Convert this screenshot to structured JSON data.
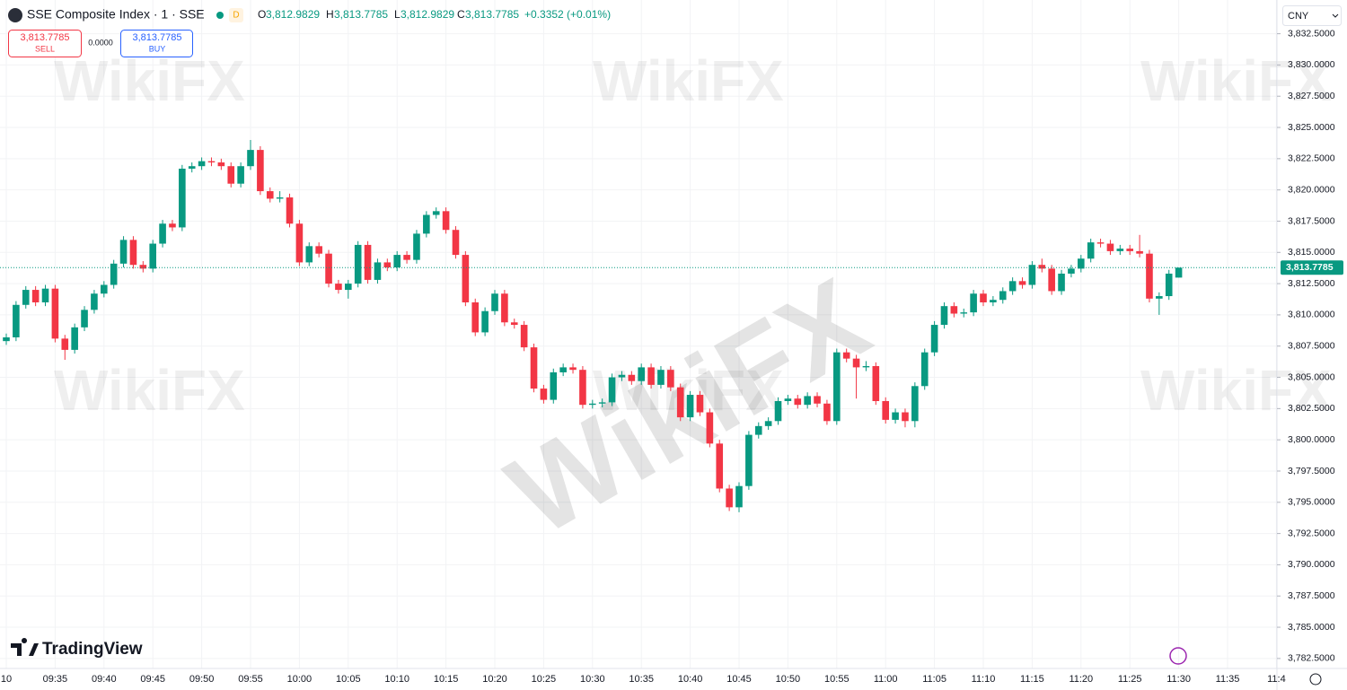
{
  "header": {
    "symbol": "SSE Composite Index · 1 · SSE",
    "badge": "D",
    "o_key": "O",
    "o_val": "3,812.9829",
    "h_key": "H",
    "h_val": "3,813.7785",
    "l_key": "L",
    "l_val": "3,812.9829",
    "c_key": "C",
    "c_val": "3,813.7785",
    "change": "+0.3352 (+0.01%)",
    "sell_price": "3,813.7785",
    "sell": "SELL",
    "spread": "0.0000",
    "buy_price": "3,813.7785",
    "buy": "BUY",
    "currency": "CNY",
    "last_price": "3,813.7785",
    "logo": "TradingView",
    "watermark": "WikiFX"
  },
  "chart_data": {
    "type": "candlestick",
    "categories": [
      "10",
      null,
      null,
      null,
      null,
      "09:35",
      null,
      null,
      null,
      null,
      "09:40",
      null,
      null,
      null,
      null,
      "09:45",
      null,
      null,
      null,
      null,
      "09:50",
      null,
      null,
      null,
      null,
      "09:55",
      null,
      null,
      null,
      null,
      "10:00",
      null,
      null,
      null,
      null,
      "10:05",
      null,
      null,
      null,
      null,
      "10:10",
      null,
      null,
      null,
      null,
      "10:15",
      null,
      null,
      null,
      null,
      "10:20",
      null,
      null,
      null,
      null,
      "10:25",
      null,
      null,
      null,
      null,
      "10:30",
      null,
      null,
      null,
      null,
      "10:35",
      null,
      null,
      null,
      null,
      "10:40",
      null,
      null,
      null,
      null,
      "10:45",
      null,
      null,
      null,
      null,
      "10:50",
      null,
      null,
      null,
      null,
      "10:55",
      null,
      null,
      null,
      null,
      "11:00",
      null,
      null,
      null,
      null,
      "11:05",
      null,
      null,
      null,
      null,
      "11:10",
      null,
      null,
      null,
      null,
      "11:15",
      null,
      null,
      null,
      null,
      "11:20",
      null,
      null,
      null,
      null,
      "11:25",
      null,
      null,
      null,
      null,
      "11:30",
      null,
      null,
      null,
      null,
      "11:35",
      null,
      null,
      null,
      null,
      "11:4"
    ],
    "series": [
      {
        "up_color": "#089981",
        "down_color": "#f23645",
        "open": [
          3807.9,
          3808.2,
          3810.8,
          3812.0,
          3811.0,
          3812.1,
          3808.1,
          3807.2,
          3809.0,
          3810.4,
          3811.7,
          3812.4,
          3814.1,
          3816.0,
          3814.0,
          3813.7,
          3815.7,
          3817.3,
          3817.0,
          3821.7,
          3821.9,
          3822.3,
          3822.2,
          3821.9,
          3820.5,
          3821.9,
          3823.2,
          3819.9,
          3819.3,
          3819.4,
          3817.3,
          3814.2,
          3815.5,
          3814.9,
          3812.5,
          3812.0,
          3812.5,
          3815.6,
          3812.8,
          3814.2,
          3813.8,
          3814.8,
          3814.4,
          3816.5,
          3818.0,
          3818.3,
          3816.8,
          3814.8,
          3811.0,
          3808.6,
          3810.3,
          3811.7,
          3809.4,
          3809.2,
          3807.4,
          3804.1,
          3803.2,
          3805.4,
          3805.8,
          3805.6,
          3802.8,
          3802.9,
          3803.0,
          3805.0,
          3805.2,
          3804.7,
          3805.8,
          3804.4,
          3805.6,
          3804.2,
          3801.8,
          3803.6,
          3802.2,
          3799.7,
          3796.1,
          3794.6,
          3796.3,
          3800.4,
          3801.1,
          3801.5,
          3803.1,
          3803.3,
          3802.8,
          3803.5,
          3802.9,
          3801.5,
          3807.0,
          3806.5,
          3805.8,
          3805.9,
          3803.1,
          3801.6,
          3802.2,
          3801.5,
          3804.3,
          3807.0,
          3809.2,
          3810.7,
          3810.1,
          3810.2,
          3811.7,
          3811.0,
          3811.2,
          3811.9,
          3812.7,
          3812.4,
          3814.0,
          3813.7,
          3811.9,
          3813.3,
          3813.7,
          3814.5,
          3815.8,
          3815.7,
          3815.1,
          3815.3,
          3815.1,
          3814.9,
          3811.3,
          3811.5,
          3812.9829,
          null,
          null,
          null,
          null,
          null,
          null,
          null,
          null,
          null,
          null
        ],
        "high": [
          3808.5,
          3811.1,
          3812.3,
          3812.3,
          3812.4,
          3812.4,
          3808.4,
          3809.3,
          3810.7,
          3812.0,
          3812.7,
          3814.4,
          3816.3,
          3816.3,
          3814.3,
          3816.0,
          3817.6,
          3817.6,
          3822.0,
          3822.2,
          3822.6,
          3822.6,
          3822.5,
          3822.2,
          3822.2,
          3824.0,
          3823.5,
          3820.2,
          3819.9,
          3819.7,
          3817.6,
          3815.8,
          3815.8,
          3815.2,
          3812.8,
          3812.8,
          3815.9,
          3815.9,
          3814.5,
          3814.5,
          3815.1,
          3815.1,
          3816.8,
          3818.3,
          3818.6,
          3818.6,
          3817.1,
          3815.1,
          3811.3,
          3810.6,
          3812.0,
          3812.0,
          3809.7,
          3809.5,
          3807.7,
          3804.4,
          3805.7,
          3806.1,
          3806.1,
          3805.9,
          3803.2,
          3803.3,
          3805.3,
          3805.5,
          3805.5,
          3806.1,
          3806.1,
          3805.9,
          3805.9,
          3804.5,
          3803.9,
          3803.9,
          3802.5,
          3800.0,
          3796.4,
          3796.6,
          3800.7,
          3801.4,
          3801.8,
          3803.4,
          3803.6,
          3803.6,
          3803.8,
          3803.8,
          3803.2,
          3807.3,
          3807.3,
          3806.8,
          3806.3,
          3806.2,
          3803.4,
          3802.5,
          3802.5,
          3804.6,
          3807.3,
          3809.5,
          3811.0,
          3811.0,
          3810.5,
          3812.0,
          3812.0,
          3811.5,
          3812.2,
          3813.0,
          3813.0,
          3814.3,
          3814.5,
          3814.0,
          3813.6,
          3814.0,
          3814.8,
          3816.1,
          3816.1,
          3816.0,
          3815.6,
          3815.6,
          3816.4,
          3815.2,
          3811.8,
          3813.6,
          3813.7785,
          null,
          null,
          null,
          null,
          null,
          null,
          null,
          null,
          null,
          null
        ],
        "low": [
          3807.6,
          3807.9,
          3810.5,
          3810.7,
          3810.7,
          3807.8,
          3806.4,
          3806.9,
          3808.7,
          3810.1,
          3811.4,
          3812.1,
          3813.8,
          3813.7,
          3813.4,
          3813.4,
          3815.4,
          3816.7,
          3816.7,
          3821.4,
          3821.6,
          3821.9,
          3821.6,
          3820.2,
          3820.2,
          3821.6,
          3819.6,
          3819.0,
          3819.0,
          3817.0,
          3813.9,
          3813.9,
          3814.6,
          3812.2,
          3811.7,
          3811.3,
          3812.2,
          3812.5,
          3812.5,
          3813.5,
          3813.5,
          3814.1,
          3814.1,
          3816.2,
          3817.7,
          3816.5,
          3814.5,
          3810.7,
          3808.3,
          3808.3,
          3810.0,
          3809.1,
          3808.9,
          3807.1,
          3803.8,
          3802.9,
          3802.9,
          3805.1,
          3805.3,
          3802.5,
          3802.5,
          3802.6,
          3802.7,
          3804.7,
          3804.4,
          3804.4,
          3804.1,
          3804.1,
          3803.9,
          3801.5,
          3801.5,
          3801.9,
          3799.4,
          3795.8,
          3794.3,
          3794.2,
          3796.0,
          3800.1,
          3800.8,
          3801.2,
          3802.8,
          3802.5,
          3802.5,
          3802.6,
          3801.2,
          3801.2,
          3806.2,
          3803.3,
          3805.5,
          3802.8,
          3801.3,
          3801.3,
          3801.0,
          3801.0,
          3804.0,
          3806.7,
          3808.9,
          3809.8,
          3809.8,
          3809.9,
          3810.7,
          3810.7,
          3810.9,
          3811.6,
          3812.1,
          3812.1,
          3813.4,
          3811.6,
          3811.6,
          3813.0,
          3813.4,
          3814.2,
          3815.4,
          3814.8,
          3814.8,
          3814.8,
          3814.6,
          3811.0,
          3810.0,
          3811.2,
          3812.9829,
          null,
          null,
          null,
          null,
          null,
          null,
          null,
          null,
          null,
          null
        ],
        "close": [
          3808.2,
          3810.8,
          3812.0,
          3811.0,
          3812.1,
          3808.1,
          3807.2,
          3809.0,
          3810.4,
          3811.7,
          3812.4,
          3814.1,
          3816.0,
          3814.0,
          3813.7,
          3815.7,
          3817.3,
          3817.0,
          3821.7,
          3821.9,
          3822.3,
          3822.2,
          3821.9,
          3820.5,
          3821.9,
          3823.2,
          3819.9,
          3819.3,
          3819.4,
          3817.3,
          3814.2,
          3815.5,
          3814.9,
          3812.5,
          3812.0,
          3812.5,
          3815.6,
          3812.8,
          3814.2,
          3813.8,
          3814.8,
          3814.4,
          3816.5,
          3818.0,
          3818.3,
          3816.8,
          3814.8,
          3811.0,
          3808.6,
          3810.3,
          3811.7,
          3809.4,
          3809.2,
          3807.4,
          3804.1,
          3803.2,
          3805.4,
          3805.8,
          3805.6,
          3802.8,
          3802.9,
          3803.0,
          3805.0,
          3805.2,
          3804.7,
          3805.8,
          3804.4,
          3805.6,
          3804.2,
          3801.8,
          3803.6,
          3802.2,
          3799.7,
          3796.1,
          3794.6,
          3796.3,
          3800.4,
          3801.1,
          3801.5,
          3803.1,
          3803.3,
          3802.8,
          3803.5,
          3802.9,
          3801.5,
          3807.0,
          3806.5,
          3805.8,
          3805.9,
          3803.1,
          3801.6,
          3802.2,
          3801.5,
          3804.3,
          3807.0,
          3809.2,
          3810.7,
          3810.1,
          3810.2,
          3811.7,
          3811.0,
          3811.2,
          3811.9,
          3812.7,
          3812.4,
          3814.0,
          3813.7,
          3811.9,
          3813.3,
          3813.7,
          3814.5,
          3815.8,
          3815.7,
          3815.1,
          3815.3,
          3815.1,
          3814.9,
          3811.3,
          3811.5,
          3813.3,
          3813.7785,
          null,
          null,
          null,
          null,
          null,
          null,
          null,
          null,
          null,
          null
        ]
      }
    ],
    "ylim": [
      3781.7,
      3835.2
    ],
    "yticks": [
      {
        "value": 3782.5,
        "label": "3,782.5000"
      },
      {
        "value": 3785,
        "label": "3,785.0000"
      },
      {
        "value": 3787.5,
        "label": "3,787.5000"
      },
      {
        "value": 3790,
        "label": "3,790.0000"
      },
      {
        "value": 3792.5,
        "label": "3,792.5000"
      },
      {
        "value": 3795,
        "label": "3,795.0000"
      },
      {
        "value": 3797.5,
        "label": "3,797.5000"
      },
      {
        "value": 3800,
        "label": "3,800.0000"
      },
      {
        "value": 3802.5,
        "label": "3,802.5000"
      },
      {
        "value": 3805,
        "label": "3,805.0000"
      },
      {
        "value": 3807.5,
        "label": "3,807.5000"
      },
      {
        "value": 3810,
        "label": "3,810.0000"
      },
      {
        "value": 3812.5,
        "label": "3,812.5000"
      },
      {
        "value": 3815,
        "label": "3,815.0000"
      },
      {
        "value": 3817.5,
        "label": "3,817.5000"
      },
      {
        "value": 3820,
        "label": "3,820.0000"
      },
      {
        "value": 3822.5,
        "label": "3,822.5000"
      },
      {
        "value": 3825,
        "label": "3,825.0000"
      },
      {
        "value": 3827.5,
        "label": "3,827.5000"
      },
      {
        "value": 3830,
        "label": "3,830.0000"
      },
      {
        "value": 3832.5,
        "label": "3,832.5000"
      }
    ],
    "grid": true
  }
}
